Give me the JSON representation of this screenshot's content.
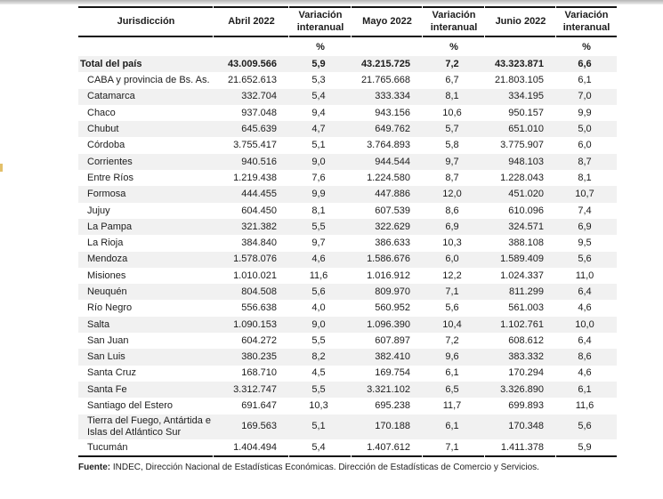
{
  "table": {
    "columns": [
      "Jurisdicción",
      "Abril 2022",
      "Variación interanual",
      "Mayo 2022",
      "Variación interanual",
      "Junio 2022",
      "Variación interanual"
    ],
    "unit_row": [
      "",
      "",
      "%",
      "",
      "%",
      "",
      "%"
    ],
    "rows": [
      {
        "label": "Total del país",
        "bold": true,
        "indent": false,
        "values": [
          "43.009.566",
          "5,9",
          "43.215.725",
          "7,2",
          "43.323.871",
          "6,6"
        ]
      },
      {
        "label": "CABA y provincia de Bs. As.",
        "bold": false,
        "indent": true,
        "values": [
          "21.652.613",
          "5,3",
          "21.765.668",
          "6,7",
          "21.803.105",
          "6,1"
        ]
      },
      {
        "label": "Catamarca",
        "bold": false,
        "indent": true,
        "values": [
          "332.704",
          "5,4",
          "333.334",
          "8,1",
          "334.195",
          "7,0"
        ]
      },
      {
        "label": "Chaco",
        "bold": false,
        "indent": true,
        "values": [
          "937.048",
          "9,4",
          "943.156",
          "10,6",
          "950.157",
          "9,9"
        ]
      },
      {
        "label": "Chubut",
        "bold": false,
        "indent": true,
        "values": [
          "645.639",
          "4,7",
          "649.762",
          "5,7",
          "651.010",
          "5,0"
        ]
      },
      {
        "label": "Córdoba",
        "bold": false,
        "indent": true,
        "values": [
          "3.755.417",
          "5,1",
          "3.764.893",
          "5,8",
          "3.775.907",
          "6,0"
        ]
      },
      {
        "label": "Corrientes",
        "bold": false,
        "indent": true,
        "values": [
          "940.516",
          "9,0",
          "944.544",
          "9,7",
          "948.103",
          "8,7"
        ]
      },
      {
        "label": "Entre Ríos",
        "bold": false,
        "indent": true,
        "values": [
          "1.219.438",
          "7,6",
          "1.224.580",
          "8,7",
          "1.228.043",
          "8,1"
        ]
      },
      {
        "label": "Formosa",
        "bold": false,
        "indent": true,
        "values": [
          "444.455",
          "9,9",
          "447.886",
          "12,0",
          "451.020",
          "10,7"
        ]
      },
      {
        "label": "Jujuy",
        "bold": false,
        "indent": true,
        "values": [
          "604.450",
          "8,1",
          "607.539",
          "8,6",
          "610.096",
          "7,4"
        ]
      },
      {
        "label": "La Pampa",
        "bold": false,
        "indent": true,
        "values": [
          "321.382",
          "5,5",
          "322.629",
          "6,9",
          "324.571",
          "6,9"
        ]
      },
      {
        "label": "La Rioja",
        "bold": false,
        "indent": true,
        "values": [
          "384.840",
          "9,7",
          "386.633",
          "10,3",
          "388.108",
          "9,5"
        ]
      },
      {
        "label": "Mendoza",
        "bold": false,
        "indent": true,
        "values": [
          "1.578.076",
          "4,6",
          "1.586.676",
          "6,0",
          "1.589.409",
          "5,6"
        ]
      },
      {
        "label": "Misiones",
        "bold": false,
        "indent": true,
        "values": [
          "1.010.021",
          "11,6",
          "1.016.912",
          "12,2",
          "1.024.337",
          "11,0"
        ]
      },
      {
        "label": "Neuquén",
        "bold": false,
        "indent": true,
        "values": [
          "804.508",
          "5,6",
          "809.970",
          "7,1",
          "811.299",
          "6,4"
        ]
      },
      {
        "label": "Río Negro",
        "bold": false,
        "indent": true,
        "values": [
          "556.638",
          "4,0",
          "560.952",
          "5,6",
          "561.003",
          "4,6"
        ]
      },
      {
        "label": "Salta",
        "bold": false,
        "indent": true,
        "values": [
          "1.090.153",
          "9,0",
          "1.096.390",
          "10,4",
          "1.102.761",
          "10,0"
        ]
      },
      {
        "label": "San Juan",
        "bold": false,
        "indent": true,
        "values": [
          "604.272",
          "5,5",
          "607.897",
          "7,2",
          "608.612",
          "6,4"
        ]
      },
      {
        "label": "San Luis",
        "bold": false,
        "indent": true,
        "values": [
          "380.235",
          "8,2",
          "382.410",
          "9,6",
          "383.332",
          "8,6"
        ]
      },
      {
        "label": "Santa Cruz",
        "bold": false,
        "indent": true,
        "values": [
          "168.710",
          "4,5",
          "169.754",
          "6,1",
          "170.294",
          "4,6"
        ]
      },
      {
        "label": "Santa Fe",
        "bold": false,
        "indent": true,
        "values": [
          "3.312.747",
          "5,5",
          "3.321.102",
          "6,5",
          "3.326.890",
          "6,1"
        ]
      },
      {
        "label": "Santiago del Estero",
        "bold": false,
        "indent": true,
        "values": [
          "691.647",
          "10,3",
          "695.238",
          "11,7",
          "699.893",
          "11,6"
        ]
      },
      {
        "label": "Tierra del Fuego, Antártida e Islas del Atlántico Sur",
        "bold": false,
        "indent": true,
        "values": [
          "169.563",
          "5,1",
          "170.188",
          "6,1",
          "170.348",
          "5,6"
        ]
      },
      {
        "label": "Tucumán",
        "bold": false,
        "indent": true,
        "values": [
          "1.404.494",
          "5,4",
          "1.407.612",
          "7,1",
          "1.411.378",
          "5,9"
        ]
      }
    ],
    "row_shade_color": "#f1f1f1",
    "rule_color": "#141414"
  },
  "footer": {
    "source_label": "Fuente:",
    "source_text": " INDEC, Dirección Nacional de Estadísticas Económicas. Dirección de Estadísticas de Comercio y Servicios."
  }
}
